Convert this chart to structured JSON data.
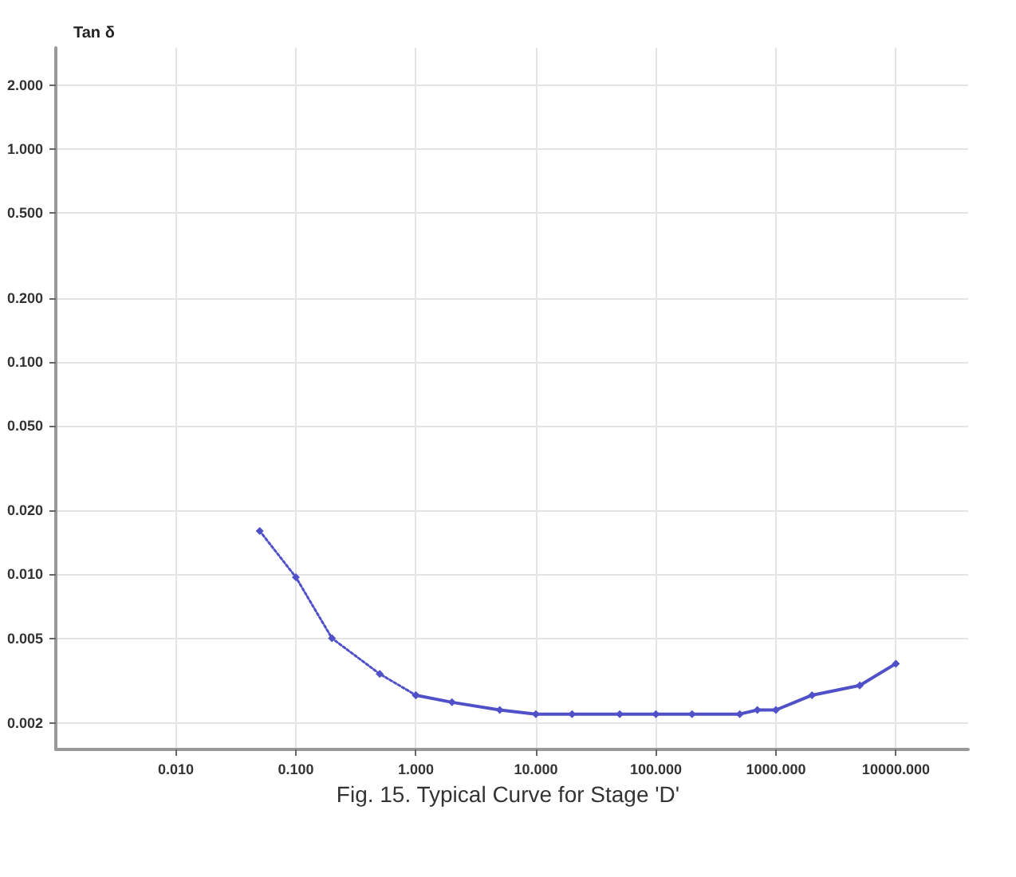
{
  "chart_data": {
    "type": "line",
    "title": "Fig. 15. Typical Curve for Stage 'D'",
    "ylabel": "Tan δ",
    "log": "xy",
    "grid": true,
    "marker": "diamond",
    "xlim": [
      0.001,
      40000
    ],
    "ylim": [
      0.0015,
      3
    ],
    "xticks": [
      {
        "value": 0.01,
        "label": "0.010"
      },
      {
        "value": 0.1,
        "label": "0.100"
      },
      {
        "value": 1,
        "label": "1.000"
      },
      {
        "value": 10,
        "label": "10.000"
      },
      {
        "value": 100,
        "label": "100.000"
      },
      {
        "value": 1000,
        "label": "1000.000"
      },
      {
        "value": 10000,
        "label": "10000.000"
      }
    ],
    "yticks": [
      {
        "value": 0.002,
        "label": "0.002"
      },
      {
        "value": 0.005,
        "label": "0.005"
      },
      {
        "value": 0.01,
        "label": "0.010"
      },
      {
        "value": 0.02,
        "label": "0.020"
      },
      {
        "value": 0.05,
        "label": "0.050"
      },
      {
        "value": 0.1,
        "label": "0.100"
      },
      {
        "value": 0.2,
        "label": "0.200"
      },
      {
        "value": 0.5,
        "label": "0.500"
      },
      {
        "value": 1,
        "label": "1.000"
      },
      {
        "value": 2,
        "label": "2.000"
      }
    ],
    "series": [
      {
        "color": "#5050c8",
        "line_style": "dotted",
        "x": [
          0.05,
          0.1,
          0.2,
          0.5,
          1
        ],
        "values": [
          0.016,
          0.0097,
          0.005,
          0.0034,
          0.0027
        ]
      },
      {
        "color": "#5050c8",
        "line_style": "solid",
        "x": [
          1,
          2,
          5,
          10,
          20,
          50,
          100,
          200,
          500,
          700,
          1000,
          2000,
          5000,
          10000
        ],
        "values": [
          0.0027,
          0.0025,
          0.0023,
          0.0022,
          0.0022,
          0.0022,
          0.0022,
          0.0022,
          0.0022,
          0.0023,
          0.0023,
          0.0027,
          0.003,
          0.0038
        ]
      }
    ]
  }
}
